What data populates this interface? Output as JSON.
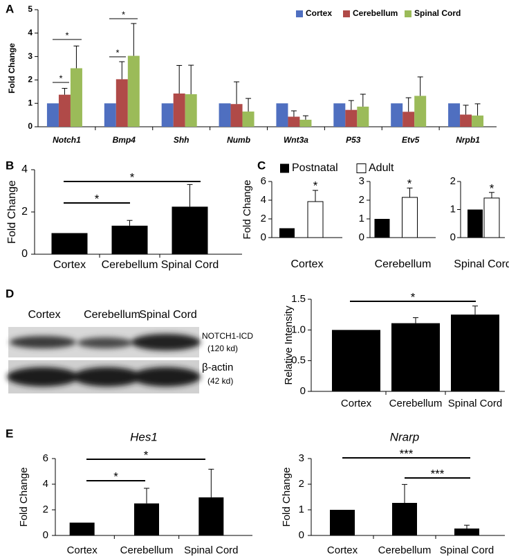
{
  "chart_data": [
    {
      "type": "bar",
      "panel": "A",
      "ylabel": "Fold Change",
      "categories": [
        "Notch1",
        "Bmp4",
        "Shh",
        "Numb",
        "Wnt3a",
        "P53",
        "Etv5",
        "Nrpb1"
      ],
      "series": [
        {
          "name": "Cortex",
          "color": "#4f6fc0",
          "values": [
            1,
            1,
            1,
            1,
            1,
            1,
            1,
            1
          ]
        },
        {
          "name": "Cerebellum",
          "color": "#b04a48",
          "values": [
            1.37,
            2.03,
            1.42,
            0.97,
            0.43,
            0.72,
            0.64,
            0.52
          ],
          "errors": [
            0.27,
            0.75,
            1.2,
            0.95,
            0.25,
            0.4,
            0.6,
            0.4
          ]
        },
        {
          "name": "Spinal Cord",
          "color": "#9bbb59",
          "values": [
            2.5,
            3.03,
            1.39,
            0.65,
            0.3,
            0.86,
            1.32,
            0.48
          ],
          "errors": [
            0.95,
            1.38,
            1.24,
            0.56,
            0.17,
            0.53,
            0.81,
            0.5
          ]
        }
      ],
      "ylim": [
        0,
        5
      ],
      "yticks": [
        0,
        1,
        2,
        3,
        4,
        5
      ],
      "annotations": [
        "*",
        "*",
        "*",
        "*"
      ]
    },
    {
      "type": "bar",
      "panel": "B",
      "ylabel": "Fold Change",
      "categories": [
        "Cortex",
        "Cerebellum",
        "Spinal Cord"
      ],
      "values": [
        1,
        1.35,
        2.25
      ],
      "errors": [
        null,
        0.25,
        1.05
      ],
      "color": "#000000",
      "ylim": [
        0,
        4
      ],
      "yticks": [
        0,
        2,
        4
      ],
      "annotations": [
        "*",
        "*"
      ]
    },
    {
      "type": "bar",
      "panel": "C",
      "ylabel": "Fold Change",
      "xlabel": "Cortex",
      "series": [
        {
          "name": "Postnatal",
          "color": "#000000",
          "values": [
            1
          ]
        },
        {
          "name": "Adult",
          "color": "#ffffff",
          "values": [
            3.85
          ],
          "errors": [
            1.2
          ]
        }
      ],
      "ylim": [
        0,
        6
      ],
      "yticks": [
        0,
        2,
        4,
        6
      ],
      "annotations": [
        "*"
      ]
    },
    {
      "type": "bar",
      "xlabel": "Cerebellum",
      "series": [
        {
          "color": "#000000",
          "values": [
            1
          ]
        },
        {
          "color": "#ffffff",
          "values": [
            2.15
          ],
          "errors": [
            0.5
          ]
        }
      ],
      "ylim": [
        0,
        3
      ],
      "yticks": [
        0,
        1,
        2,
        3
      ],
      "annotations": [
        "*"
      ]
    },
    {
      "type": "bar",
      "xlabel": "Spinal Cord",
      "series": [
        {
          "color": "#000000",
          "values": [
            1
          ]
        },
        {
          "color": "#ffffff",
          "values": [
            1.41
          ],
          "errors": [
            0.2
          ]
        }
      ],
      "ylim": [
        0,
        2
      ],
      "yticks": [
        0,
        1,
        2
      ],
      "annotations": [
        "*"
      ]
    },
    {
      "type": "bar",
      "panel": "D",
      "ylabel": "Relative Intensity",
      "categories": [
        "Cortex",
        "Cerebellum",
        "Spinal Cord"
      ],
      "values": [
        1,
        1.11,
        1.25
      ],
      "errors": [
        null,
        0.09,
        0.14
      ],
      "color": "#000000",
      "ylim": [
        0,
        1.5
      ],
      "yticks": [
        0,
        0.5,
        {
          "value": 1,
          "label": "1.0"
        },
        1.5
      ],
      "annotations": [
        "*"
      ]
    },
    {
      "type": "bar",
      "panel": "E",
      "title": "Hes1",
      "ylabel": "Fold Change",
      "categories": [
        "Cortex",
        "Cerebellum",
        "Spinal Cord"
      ],
      "values": [
        1,
        2.5,
        2.97
      ],
      "errors": [
        null,
        1.18,
        2.2
      ],
      "color": "#000000",
      "ylim": [
        0,
        6
      ],
      "yticks": [
        0,
        2,
        4,
        6
      ],
      "annotations": [
        "*",
        "*"
      ]
    },
    {
      "type": "bar",
      "title": "Nrarp",
      "ylabel": "Fold Change",
      "categories": [
        "Cortex",
        "Cerebellum",
        "Spinal Cord"
      ],
      "values": [
        1,
        1.27,
        0.27
      ],
      "errors": [
        null,
        0.72,
        0.13
      ],
      "color": "#000000",
      "ylim": [
        0,
        3
      ],
      "yticks": [
        0,
        1,
        2,
        3
      ],
      "annotations": [
        "***",
        "***"
      ]
    }
  ],
  "blot": {
    "lanes": [
      "Cortex",
      "Cerebellum",
      "Spinal Cord"
    ],
    "bands": [
      {
        "name": "NOTCH1-ICD",
        "size": "(120 kd)"
      },
      {
        "name": "β-actin",
        "size": "(42 kd)"
      }
    ]
  }
}
